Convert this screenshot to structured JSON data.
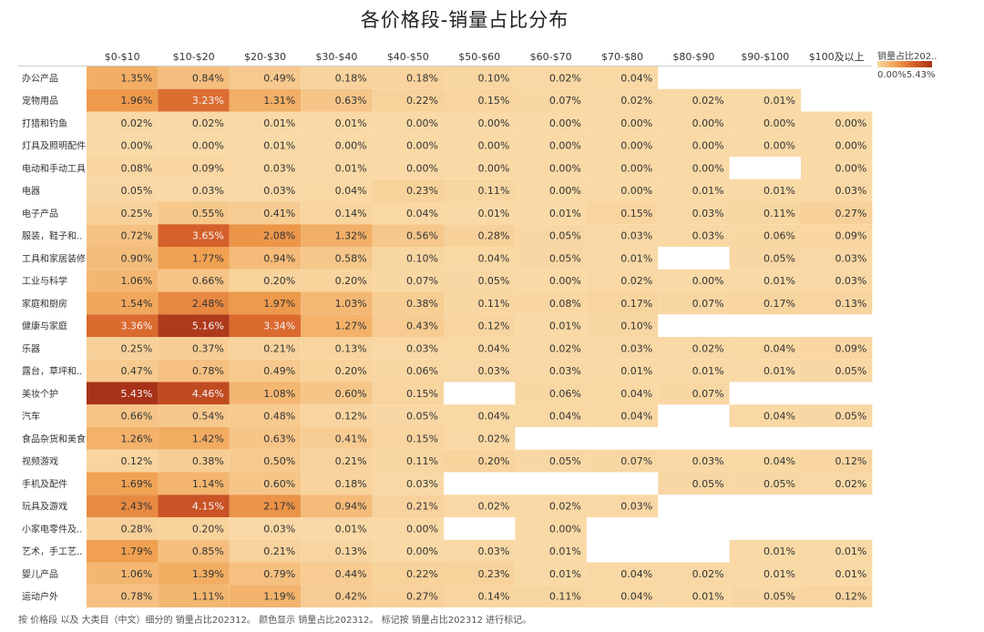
{
  "chart_data": {
    "type": "heatmap",
    "title": "各价格段-销量占比分布",
    "columns": [
      "$0-$10",
      "$10-$20",
      "$20-$30",
      "$30-$40",
      "$40-$50",
      "$50-$60",
      "$60-$70",
      "$70-$80",
      "$80-$90",
      "$90-$100",
      "$100及以上"
    ],
    "rows": [
      "办公产品",
      "宠物用品",
      "打猎和钓鱼",
      "灯具及照明配件",
      "电动和手动工具",
      "电器",
      "电子产品",
      "服装，鞋子和..",
      "工具和家居装修",
      "工业与科学",
      "家庭和厨房",
      "健康与家庭",
      "乐器",
      "露台，草坪和..",
      "美妆个护",
      "汽车",
      "食品杂货和美食",
      "视频游戏",
      "手机及配件",
      "玩具及游戏",
      "小家电零件及..",
      "艺术，手工艺..",
      "婴儿产品",
      "运动户外"
    ],
    "values": [
      [
        "1.35%",
        "0.84%",
        "0.49%",
        "0.18%",
        "0.18%",
        "0.10%",
        "0.02%",
        "0.04%",
        null,
        null,
        null
      ],
      [
        "1.96%",
        "3.23%",
        "1.31%",
        "0.63%",
        "0.22%",
        "0.15%",
        "0.07%",
        "0.02%",
        "0.02%",
        "0.01%",
        null
      ],
      [
        "0.02%",
        "0.02%",
        "0.01%",
        "0.01%",
        "0.00%",
        "0.00%",
        "0.00%",
        "0.00%",
        "0.00%",
        "0.00%",
        "0.00%"
      ],
      [
        "0.00%",
        "0.00%",
        "0.01%",
        "0.00%",
        "0.00%",
        "0.00%",
        "0.00%",
        "0.00%",
        "0.00%",
        "0.00%",
        "0.00%"
      ],
      [
        "0.08%",
        "0.09%",
        "0.03%",
        "0.01%",
        "0.00%",
        "0.00%",
        "0.00%",
        "0.00%",
        "0.00%",
        null,
        "0.00%"
      ],
      [
        "0.05%",
        "0.03%",
        "0.03%",
        "0.04%",
        "0.23%",
        "0.11%",
        "0.00%",
        "0.00%",
        "0.01%",
        "0.01%",
        "0.03%"
      ],
      [
        "0.25%",
        "0.55%",
        "0.41%",
        "0.14%",
        "0.04%",
        "0.01%",
        "0.01%",
        "0.15%",
        "0.03%",
        "0.11%",
        "0.27%"
      ],
      [
        "0.72%",
        "3.65%",
        "2.08%",
        "1.32%",
        "0.56%",
        "0.28%",
        "0.05%",
        "0.03%",
        "0.03%",
        "0.06%",
        "0.09%"
      ],
      [
        "0.90%",
        "1.77%",
        "0.94%",
        "0.58%",
        "0.10%",
        "0.04%",
        "0.05%",
        "0.01%",
        null,
        "0.05%",
        "0.03%"
      ],
      [
        "1.06%",
        "0.66%",
        "0.20%",
        "0.20%",
        "0.07%",
        "0.05%",
        "0.00%",
        "0.02%",
        "0.00%",
        "0.01%",
        "0.03%"
      ],
      [
        "1.54%",
        "2.48%",
        "1.97%",
        "1.03%",
        "0.38%",
        "0.11%",
        "0.08%",
        "0.17%",
        "0.07%",
        "0.17%",
        "0.13%"
      ],
      [
        "3.36%",
        "5.16%",
        "3.34%",
        "1.27%",
        "0.43%",
        "0.12%",
        "0.01%",
        "0.10%",
        null,
        null,
        null
      ],
      [
        "0.25%",
        "0.37%",
        "0.21%",
        "0.13%",
        "0.03%",
        "0.04%",
        "0.02%",
        "0.03%",
        "0.02%",
        "0.04%",
        "0.09%"
      ],
      [
        "0.47%",
        "0.78%",
        "0.49%",
        "0.20%",
        "0.06%",
        "0.03%",
        "0.03%",
        "0.01%",
        "0.01%",
        "0.01%",
        "0.05%"
      ],
      [
        "5.43%",
        "4.46%",
        "1.08%",
        "0.60%",
        "0.15%",
        null,
        "0.06%",
        "0.04%",
        "0.07%",
        null,
        null
      ],
      [
        "0.66%",
        "0.54%",
        "0.48%",
        "0.12%",
        "0.05%",
        "0.04%",
        "0.04%",
        "0.04%",
        null,
        "0.04%",
        "0.05%"
      ],
      [
        "1.26%",
        "1.42%",
        "0.63%",
        "0.41%",
        "0.15%",
        "0.02%",
        null,
        null,
        null,
        null,
        null
      ],
      [
        "0.12%",
        "0.38%",
        "0.50%",
        "0.21%",
        "0.11%",
        "0.20%",
        "0.05%",
        "0.07%",
        "0.03%",
        "0.04%",
        "0.12%"
      ],
      [
        "1.69%",
        "1.14%",
        "0.60%",
        "0.18%",
        "0.03%",
        null,
        null,
        null,
        "0.05%",
        "0.05%",
        "0.02%"
      ],
      [
        "2.43%",
        "4.15%",
        "2.17%",
        "0.94%",
        "0.21%",
        "0.02%",
        "0.02%",
        "0.03%",
        null,
        null,
        null
      ],
      [
        "0.28%",
        "0.20%",
        "0.03%",
        "0.01%",
        "0.00%",
        null,
        "0.00%",
        null,
        null,
        null,
        null
      ],
      [
        "1.79%",
        "0.85%",
        "0.21%",
        "0.13%",
        "0.00%",
        "0.03%",
        "0.01%",
        null,
        null,
        "0.01%",
        "0.01%"
      ],
      [
        "1.06%",
        "1.39%",
        "0.79%",
        "0.44%",
        "0.22%",
        "0.23%",
        "0.01%",
        "0.04%",
        "0.02%",
        "0.01%",
        "0.01%"
      ],
      [
        "0.78%",
        "1.11%",
        "1.19%",
        "0.42%",
        "0.27%",
        "0.14%",
        "0.11%",
        "0.04%",
        "0.01%",
        "0.05%",
        "0.12%"
      ]
    ],
    "color_range": [
      0.0,
      5.43
    ],
    "colors": {
      "low": "#f9d9a6",
      "mid": "#f0a050",
      "high": "#d8622a",
      "max": "#a83218"
    }
  },
  "legend": {
    "title": "销量占比202..",
    "range": "0.00%5.43%"
  },
  "footnote": "按 价格段 以及 大类目（中文）细分的 销量占比202312。 颜色显示 销量占比202312。 标记按 销量占比202312 进行标记。"
}
